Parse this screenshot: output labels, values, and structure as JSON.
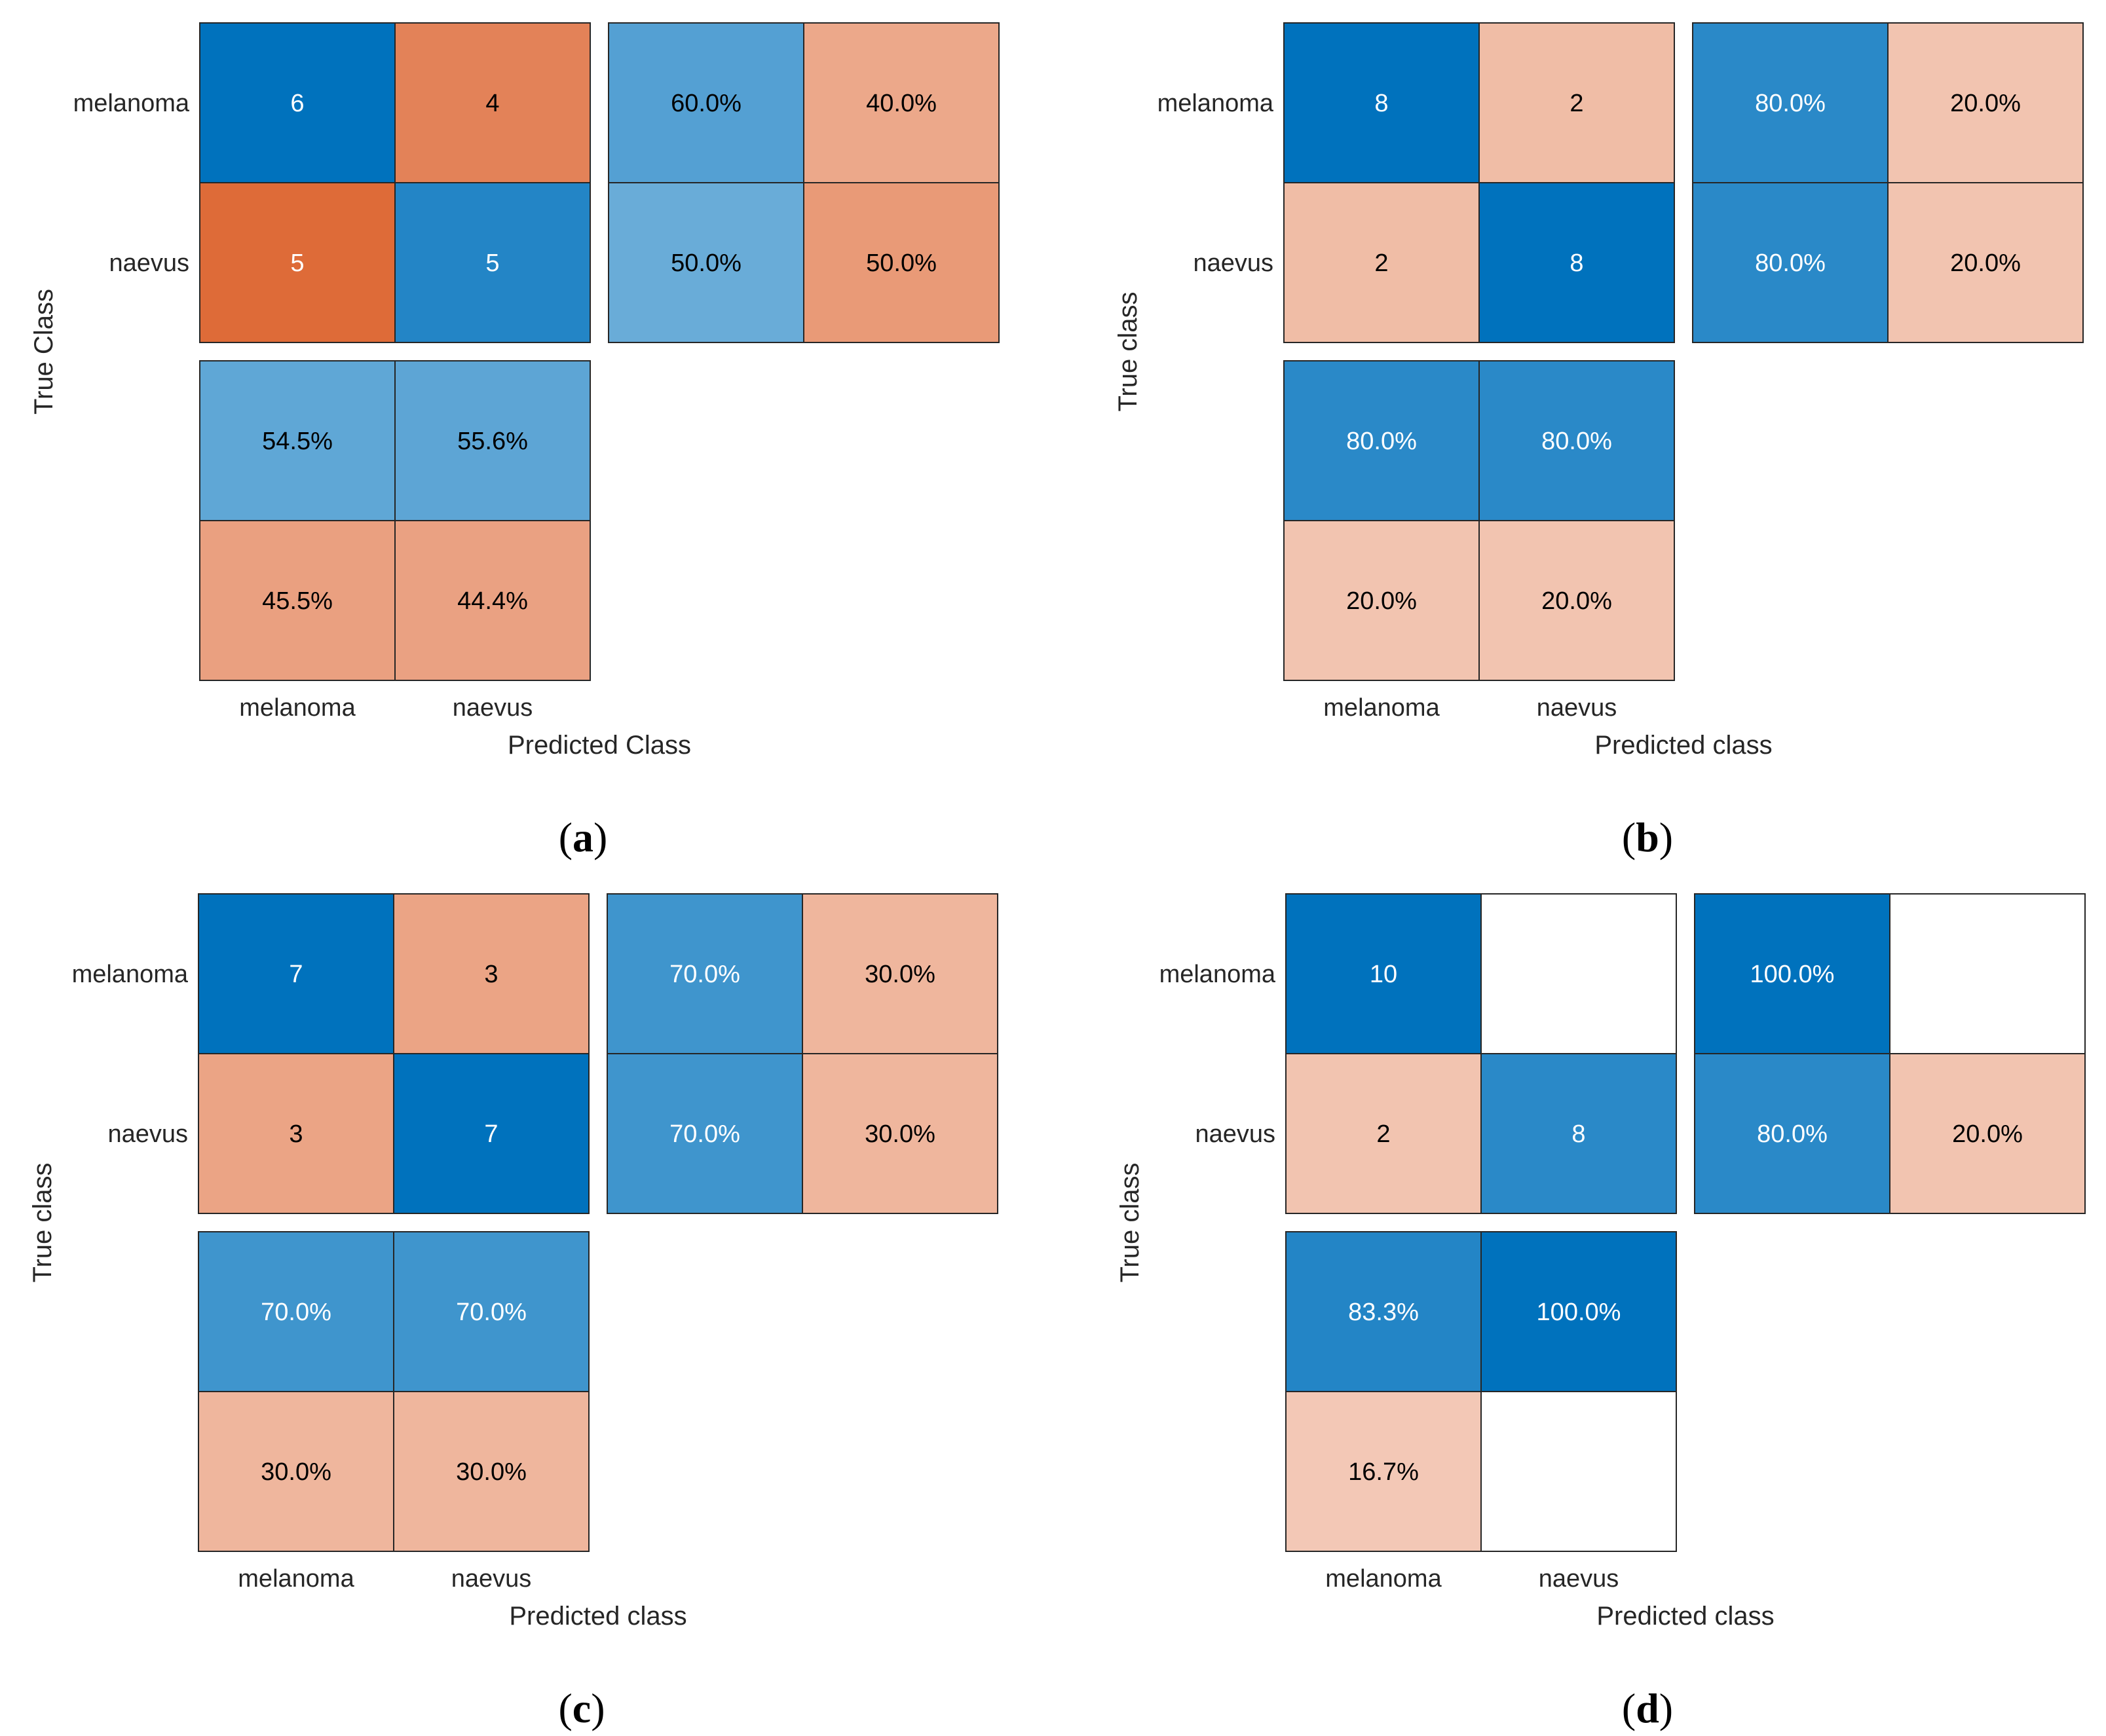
{
  "chart_data": [
    {
      "type": "heatmap",
      "panel": "a",
      "classes": [
        "melanoma",
        "naevus"
      ],
      "ylabel": "True Class",
      "xlabel": "Predicted Class",
      "matrix": [
        [
          "6",
          "4"
        ],
        [
          "5",
          "5"
        ]
      ],
      "matrix_values": [
        [
          6,
          4
        ],
        [
          5,
          5
        ]
      ],
      "row_summary": [
        [
          "60.0%",
          "40.0%"
        ],
        [
          "50.0%",
          "50.0%"
        ]
      ],
      "row_summary_values": [
        [
          60.0,
          40.0
        ],
        [
          50.0,
          50.0
        ]
      ],
      "column_summary": [
        [
          "54.5%",
          "55.6%"
        ],
        [
          "45.5%",
          "44.4%"
        ]
      ],
      "column_summary_values": [
        [
          54.5,
          55.6
        ],
        [
          45.5,
          44.4
        ]
      ]
    },
    {
      "type": "heatmap",
      "panel": "b",
      "classes": [
        "melanoma",
        "naevus"
      ],
      "ylabel": "True class",
      "xlabel": "Predicted class",
      "matrix": [
        [
          "8",
          "2"
        ],
        [
          "2",
          "8"
        ]
      ],
      "matrix_values": [
        [
          8,
          2
        ],
        [
          2,
          8
        ]
      ],
      "row_summary": [
        [
          "80.0%",
          "20.0%"
        ],
        [
          "80.0%",
          "20.0%"
        ]
      ],
      "row_summary_values": [
        [
          80.0,
          20.0
        ],
        [
          80.0,
          20.0
        ]
      ],
      "column_summary": [
        [
          "80.0%",
          "80.0%"
        ],
        [
          "20.0%",
          "20.0%"
        ]
      ],
      "column_summary_values": [
        [
          80.0,
          80.0
        ],
        [
          20.0,
          20.0
        ]
      ]
    },
    {
      "type": "heatmap",
      "panel": "c",
      "classes": [
        "melanoma",
        "naevus"
      ],
      "ylabel": "True class",
      "xlabel": "Predicted class",
      "matrix": [
        [
          "7",
          "3"
        ],
        [
          "3",
          "7"
        ]
      ],
      "matrix_values": [
        [
          7,
          3
        ],
        [
          3,
          7
        ]
      ],
      "row_summary": [
        [
          "70.0%",
          "30.0%"
        ],
        [
          "70.0%",
          "30.0%"
        ]
      ],
      "row_summary_values": [
        [
          70.0,
          30.0
        ],
        [
          70.0,
          30.0
        ]
      ],
      "column_summary": [
        [
          "70.0%",
          "70.0%"
        ],
        [
          "30.0%",
          "30.0%"
        ]
      ],
      "column_summary_values": [
        [
          70.0,
          70.0
        ],
        [
          30.0,
          30.0
        ]
      ]
    },
    {
      "type": "heatmap",
      "panel": "d",
      "classes": [
        "melanoma",
        "naevus"
      ],
      "ylabel": "True class",
      "xlabel": "Predicted class",
      "matrix": [
        [
          "10",
          ""
        ],
        [
          "2",
          "8"
        ]
      ],
      "matrix_values": [
        [
          10,
          0
        ],
        [
          2,
          8
        ]
      ],
      "row_summary": [
        [
          "100.0%",
          ""
        ],
        [
          "80.0%",
          "20.0%"
        ]
      ],
      "row_summary_values": [
        [
          100.0,
          0
        ],
        [
          80.0,
          20.0
        ]
      ],
      "column_summary": [
        [
          "83.3%",
          "100.0%"
        ],
        [
          "16.7%",
          ""
        ]
      ],
      "column_summary_values": [
        [
          83.3,
          100.0
        ],
        [
          16.7,
          0
        ]
      ]
    }
  ],
  "panel_labels": [
    "a",
    "b",
    "c",
    "d"
  ],
  "colors": {
    "correct": "#0072bd",
    "incorrect": "#d95319",
    "cell_border": "#262626",
    "dark_text": "#000000",
    "light_text": "#ffffff"
  }
}
